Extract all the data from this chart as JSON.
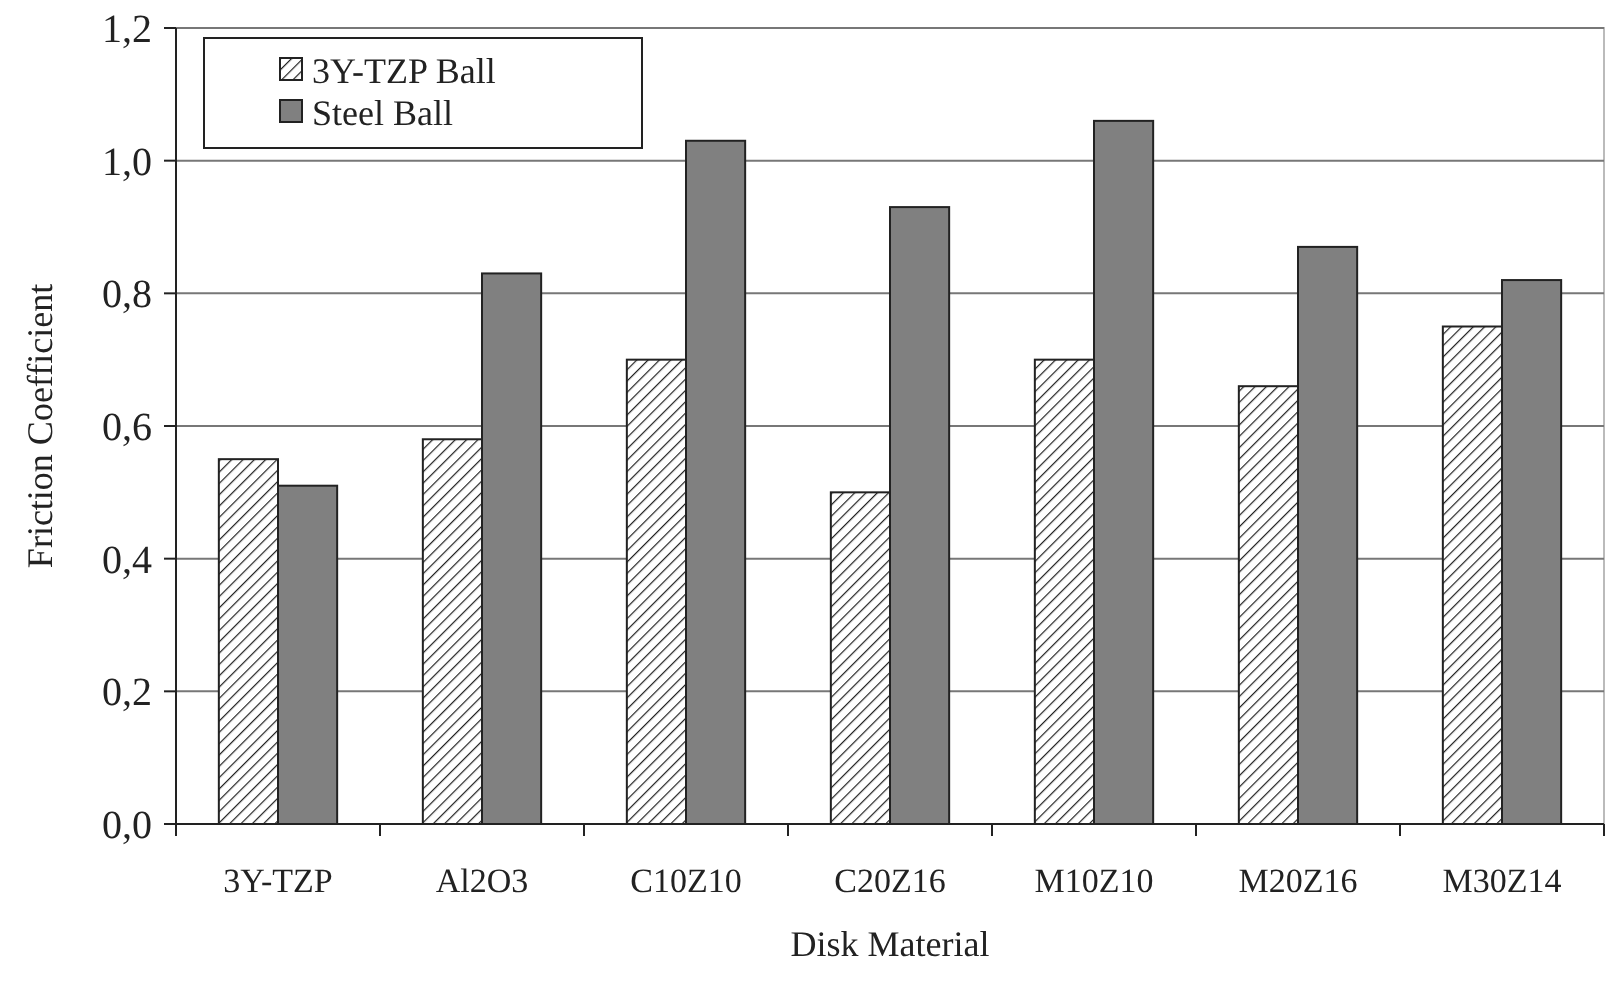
{
  "chart_data": {
    "type": "bar",
    "xlabel": "Disk Material",
    "ylabel": "Friction Coefficient",
    "categories": [
      "3Y-TZP",
      "Al2O3",
      "C10Z10",
      "C20Z16",
      "M10Z10",
      "M20Z16",
      "M30Z14"
    ],
    "series": [
      {
        "name": "3Y-TZP Ball",
        "color": "#222222",
        "values": [
          0.55,
          0.58,
          0.7,
          0.5,
          0.7,
          0.66,
          0.75
        ]
      },
      {
        "name": "Steel Ball",
        "color": "#808080",
        "values": [
          0.51,
          0.83,
          1.03,
          0.93,
          1.06,
          0.87,
          0.82
        ]
      }
    ],
    "ylim": [
      0,
      1.2
    ],
    "yticks": [
      {
        "value": 0,
        "label": "0,0"
      },
      {
        "value": 0.2,
        "label": "0,2"
      },
      {
        "value": 0.4,
        "label": "0,4"
      },
      {
        "value": 0.6,
        "label": "0,6"
      },
      {
        "value": 0.8,
        "label": "0,8"
      },
      {
        "value": 1.0,
        "label": "1,0"
      },
      {
        "value": 1.2,
        "label": "1,2"
      }
    ],
    "grid": "y",
    "legend": "top left"
  }
}
